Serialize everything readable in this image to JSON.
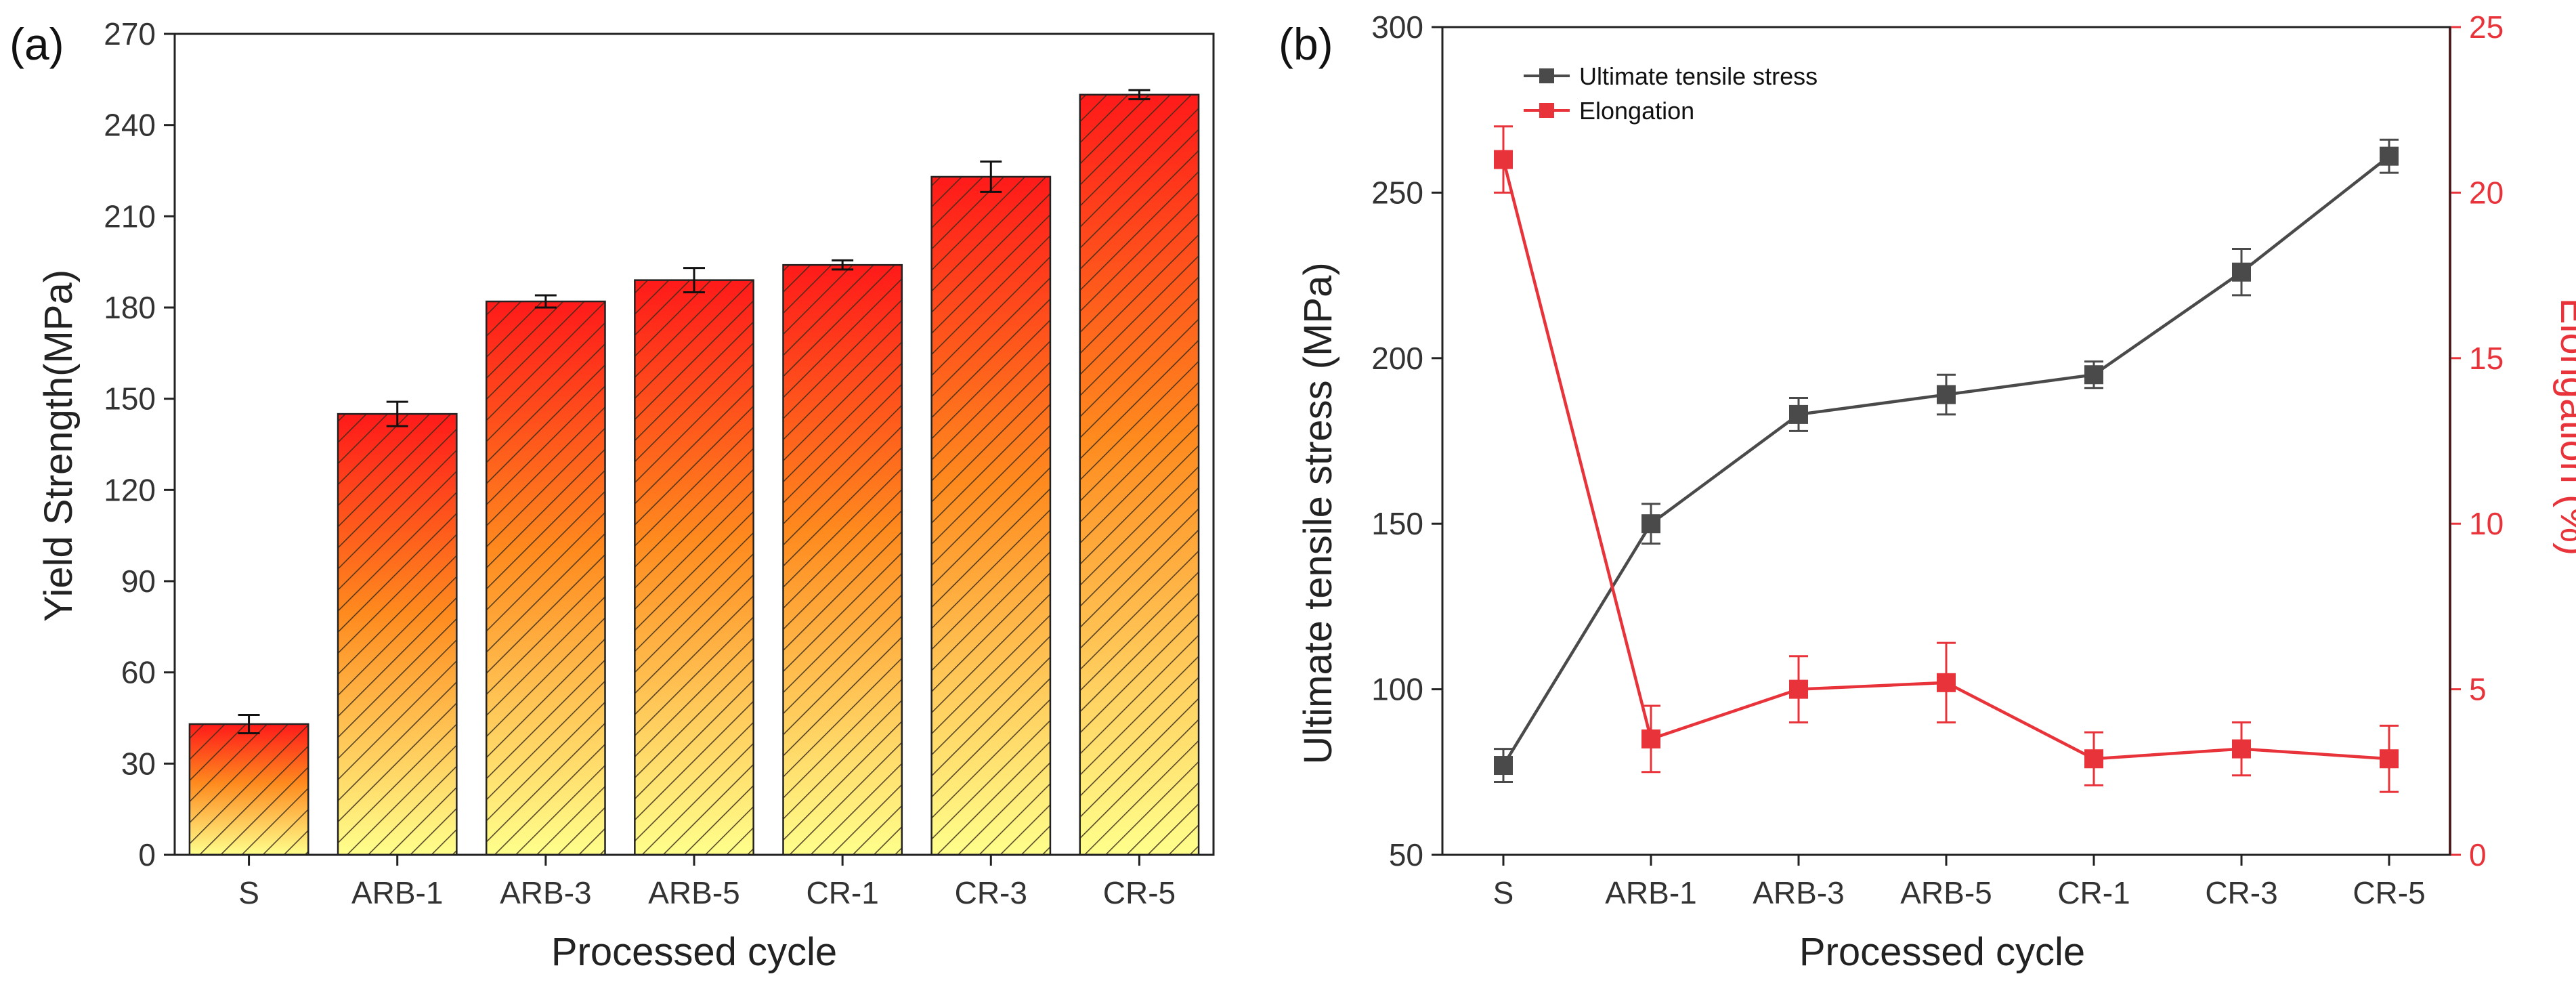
{
  "chart_data": [
    {
      "type": "bar",
      "panel_label": "(a)",
      "categories": [
        "S",
        "ARB-1",
        "ARB-3",
        "ARB-5",
        "CR-1",
        "CR-3",
        "CR-5"
      ],
      "values": [
        43,
        145,
        182,
        189,
        194,
        223,
        250
      ],
      "errors": [
        3,
        4,
        2,
        4,
        1.5,
        5,
        1.5
      ],
      "xlabel": "Processed cycle",
      "ylabel": "Yield Strength(MPa)",
      "ylim": [
        0,
        270
      ],
      "yticks": [
        "0",
        "30",
        "60",
        "90",
        "120",
        "150",
        "180",
        "210",
        "240",
        "270"
      ],
      "fill": "gradient yellow-to-red with diagonal hatch",
      "colors": {
        "top": "#ff1a1a",
        "mid": "#ff8a1e",
        "bottom": "#ffff8c",
        "hatch": "#3a2a1a"
      }
    },
    {
      "type": "line",
      "panel_label": "(b)",
      "categories": [
        "S",
        "ARB-1",
        "ARB-3",
        "ARB-5",
        "CR-1",
        "CR-3",
        "CR-5"
      ],
      "xlabel": "Processed cycle",
      "ylabel_left": "Ultimate tensile stress (MPa)",
      "ylabel_right": "Elongation (%)",
      "ylim_left": [
        50,
        300
      ],
      "ylim_right": [
        0,
        25
      ],
      "yticks_left": [
        "50",
        "100",
        "150",
        "200",
        "250",
        "300"
      ],
      "yticks_right": [
        "0",
        "5",
        "10",
        "15",
        "20",
        "25"
      ],
      "legend_position": "top-left",
      "series": [
        {
          "name": "Ultimate tensile stress",
          "axis": "left",
          "color": "#4a4a4a",
          "values": [
            77,
            150,
            183,
            189,
            195,
            226,
            261
          ],
          "errors": [
            5,
            6,
            5,
            6,
            4,
            7,
            5
          ]
        },
        {
          "name": "Elongation",
          "axis": "right",
          "color": "#e8333a",
          "values": [
            21,
            3.5,
            5,
            5.2,
            2.9,
            3.2,
            2.9
          ],
          "errors": [
            1,
            1,
            1,
            1.2,
            0.8,
            0.8,
            1
          ]
        }
      ]
    }
  ]
}
